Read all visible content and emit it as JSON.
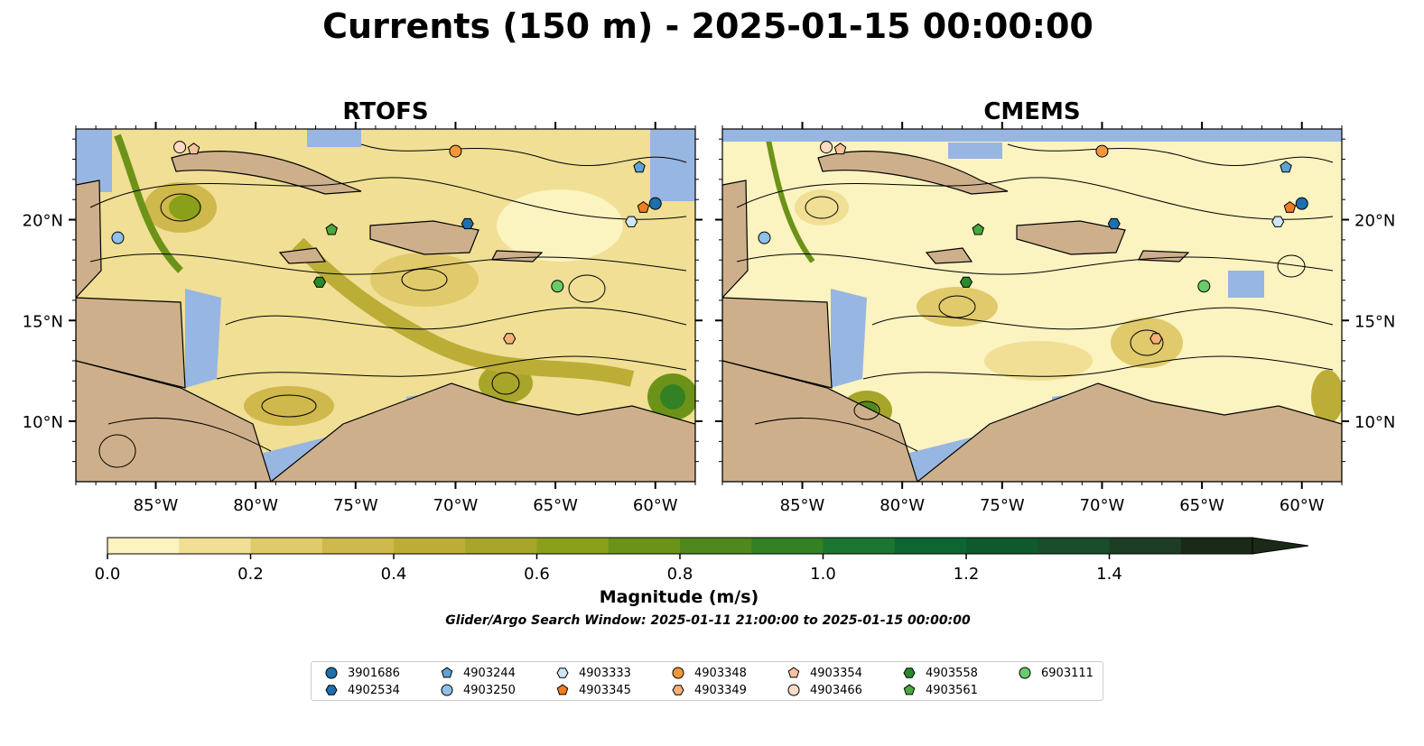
{
  "figure": {
    "title": "Currents (150 m) - 2025-01-15 00:00:00",
    "colorbar_label": "Magnitude (m/s)",
    "subtitle": "Glider/Argo Search Window: 2025-01-11 21:00:00 to 2025-01-15 00:00:00"
  },
  "colors": {
    "ocean": "#97b6e1",
    "land": "#cdb08b",
    "colormap": [
      "#fbf3c0",
      "#f0df94",
      "#e0ca6c",
      "#cfb84c",
      "#bcad37",
      "#a7a52a",
      "#8aa01a",
      "#6c9318",
      "#4f881d",
      "#338124",
      "#1c7530",
      "#0d6631",
      "#0e5a2c",
      "#194d2b",
      "#1d3d24",
      "#1b2a17"
    ]
  },
  "chart_data": [
    {
      "type": "heatmap",
      "title": "RTOFS",
      "x_ticks": [
        "85°W",
        "80°W",
        "75°W",
        "70°W",
        "65°W",
        "60°W"
      ],
      "y_ticks_left": [
        "20°N",
        "15°N",
        "10°N"
      ],
      "x_tick_values": [
        -85,
        -80,
        -75,
        -70,
        -65,
        -60
      ],
      "y_tick_values": [
        20,
        15,
        10
      ],
      "xlim": [
        -89,
        -58
      ],
      "ylim": [
        7,
        24.5
      ],
      "points": [
        {
          "id": "3901686",
          "lon": -60.0,
          "lat": 20.8
        },
        {
          "id": "4902534",
          "lon": -69.4,
          "lat": 19.8
        },
        {
          "id": "4903244",
          "lon": -60.8,
          "lat": 22.6
        },
        {
          "id": "4903250",
          "lon": -86.9,
          "lat": 19.1
        },
        {
          "id": "4903333",
          "lon": -61.2,
          "lat": 19.9
        },
        {
          "id": "4903345",
          "lon": -60.6,
          "lat": 20.6
        },
        {
          "id": "4903348",
          "lon": -70.0,
          "lat": 23.4
        },
        {
          "id": "4903349",
          "lon": -67.3,
          "lat": 14.1
        },
        {
          "id": "4903354",
          "lon": -83.1,
          "lat": 23.5
        },
        {
          "id": "4903466",
          "lon": -83.8,
          "lat": 23.6
        },
        {
          "id": "4903558",
          "lon": -76.8,
          "lat": 16.9
        },
        {
          "id": "4903561",
          "lon": -76.2,
          "lat": 19.5
        },
        {
          "id": "6903111",
          "lon": -64.9,
          "lat": 16.7
        }
      ]
    },
    {
      "type": "heatmap",
      "title": "CMEMS",
      "x_ticks": [
        "85°W",
        "80°W",
        "75°W",
        "70°W",
        "65°W",
        "60°W"
      ],
      "y_ticks_right": [
        "20°N",
        "15°N",
        "10°N"
      ],
      "x_tick_values": [
        -85,
        -80,
        -75,
        -70,
        -65,
        -60
      ],
      "y_tick_values": [
        20,
        15,
        10
      ],
      "xlim": [
        -89,
        -58
      ],
      "ylim": [
        7,
        24.5
      ],
      "points": [
        {
          "id": "3901686",
          "lon": -60.0,
          "lat": 20.8
        },
        {
          "id": "4902534",
          "lon": -69.4,
          "lat": 19.8
        },
        {
          "id": "4903244",
          "lon": -60.8,
          "lat": 22.6
        },
        {
          "id": "4903250",
          "lon": -86.9,
          "lat": 19.1
        },
        {
          "id": "4903333",
          "lon": -61.2,
          "lat": 19.9
        },
        {
          "id": "4903345",
          "lon": -60.6,
          "lat": 20.6
        },
        {
          "id": "4903348",
          "lon": -70.0,
          "lat": 23.4
        },
        {
          "id": "4903349",
          "lon": -67.3,
          "lat": 14.1
        },
        {
          "id": "4903354",
          "lon": -83.1,
          "lat": 23.5
        },
        {
          "id": "4903466",
          "lon": -83.8,
          "lat": 23.6
        },
        {
          "id": "4903558",
          "lon": -76.8,
          "lat": 16.9
        },
        {
          "id": "4903561",
          "lon": -76.2,
          "lat": 19.5
        },
        {
          "id": "6903111",
          "lon": -64.9,
          "lat": 16.7
        }
      ]
    }
  ],
  "colorbar": {
    "ticks": [
      "0.0",
      "0.2",
      "0.4",
      "0.6",
      "0.8",
      "1.0",
      "1.2",
      "1.4"
    ],
    "tick_values": [
      0,
      0.2,
      0.4,
      0.6,
      0.8,
      1.0,
      1.2,
      1.4
    ],
    "range": [
      0,
      1.6
    ],
    "extend": "max"
  },
  "legend": {
    "placement": "bottom-center",
    "items": [
      {
        "id": "3901686",
        "marker": "circle",
        "color": "#1f6ead"
      },
      {
        "id": "4902534",
        "marker": "hexagon",
        "color": "#1f6ead"
      },
      {
        "id": "4903244",
        "marker": "pentagon",
        "color": "#5fa2d6"
      },
      {
        "id": "4903250",
        "marker": "circle",
        "color": "#8ec0e8"
      },
      {
        "id": "4903333",
        "marker": "hexagon",
        "color": "#cfe6f7"
      },
      {
        "id": "4903345",
        "marker": "pentagon",
        "color": "#f07d1e"
      },
      {
        "id": "4903348",
        "marker": "circle",
        "color": "#f4963a"
      },
      {
        "id": "4903349",
        "marker": "hexagon",
        "color": "#f8b07a"
      },
      {
        "id": "4903354",
        "marker": "pentagon",
        "color": "#f9c29d"
      },
      {
        "id": "4903466",
        "marker": "circle",
        "color": "#fcdcc3"
      },
      {
        "id": "4903558",
        "marker": "hexagon",
        "color": "#2a8a2a"
      },
      {
        "id": "4903561",
        "marker": "pentagon",
        "color": "#4aa83e"
      },
      {
        "id": "6903111",
        "marker": "circle",
        "color": "#6acb6b"
      }
    ]
  }
}
